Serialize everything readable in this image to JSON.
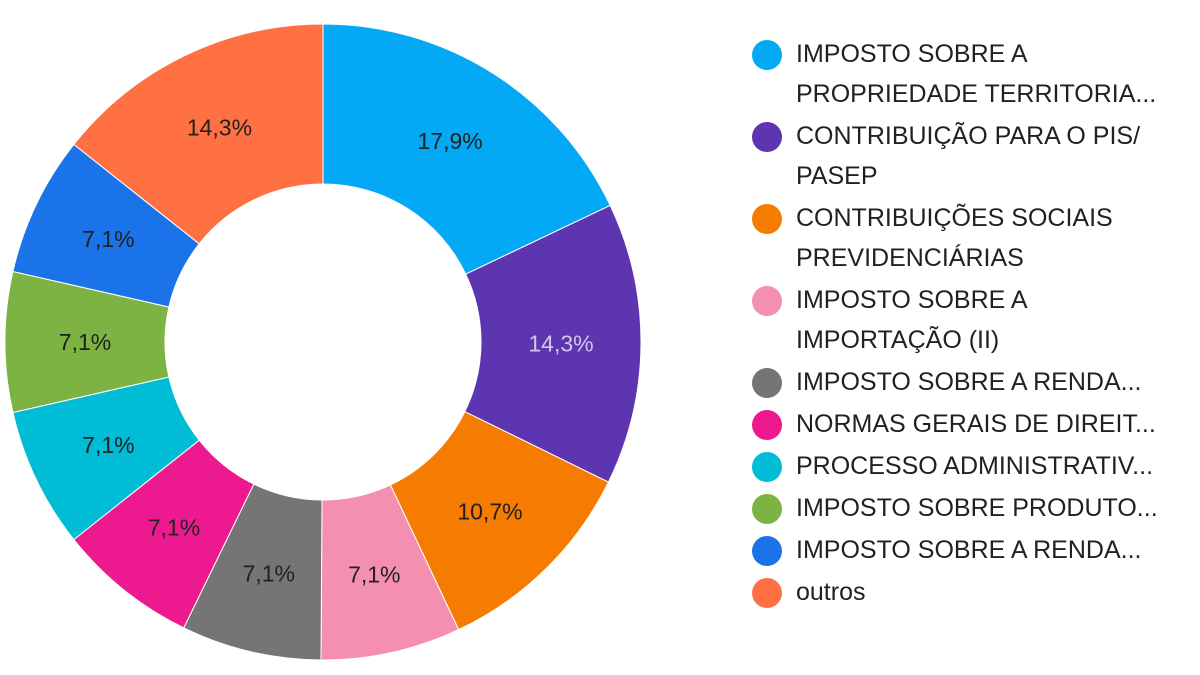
{
  "chart_data": {
    "type": "pie",
    "donut": true,
    "legend_position": "right",
    "title": "",
    "slices": [
      {
        "label": "IMPOSTO SOBRE A PROPRIEDADE TERRITORIA...",
        "value": 17.9,
        "display": "17,9%",
        "color": "#03a9f4",
        "label_color": "#212121"
      },
      {
        "label": "CONTRIBUIÇÃO PARA O PIS/ PASEP",
        "value": 14.3,
        "display": "14,3%",
        "color": "#5e35b1",
        "label_color": "#d0c8e4"
      },
      {
        "label": "CONTRIBUIÇÕES SOCIAIS PREVIDENCIÁRIAS",
        "value": 10.7,
        "display": "10,7%",
        "color": "#f57c00",
        "label_color": "#212121"
      },
      {
        "label": "IMPOSTO SOBRE A IMPORTAÇÃO (II)",
        "value": 7.1,
        "display": "7,1%",
        "color": "#f48fb1",
        "label_color": "#212121"
      },
      {
        "label": "IMPOSTO SOBRE A RENDA...",
        "value": 7.1,
        "display": "7,1%",
        "color": "#757575",
        "label_color": "#212121"
      },
      {
        "label": "NORMAS GERAIS DE DIREIT...",
        "value": 7.1,
        "display": "7,1%",
        "color": "#ec1a8e",
        "label_color": "#212121"
      },
      {
        "label": "PROCESSO ADMINISTRATIV...",
        "value": 7.1,
        "display": "7,1%",
        "color": "#00bcd4",
        "label_color": "#212121"
      },
      {
        "label": "IMPOSTO SOBRE PRODUTO...",
        "value": 7.1,
        "display": "7,1%",
        "color": "#7cb342",
        "label_color": "#212121"
      },
      {
        "label": "IMPOSTO SOBRE A RENDA...",
        "value": 7.1,
        "display": "7,1%",
        "color": "#1a73e8",
        "label_color": "#212121"
      },
      {
        "label": "outros",
        "value": 14.3,
        "display": "14,3%",
        "color": "#ff7043",
        "label_color": "#212121"
      }
    ]
  },
  "legend": {
    "items": [
      {
        "lines": [
          "IMPOSTO SOBRE A",
          "PROPRIEDADE TERRITORIA..."
        ],
        "color": "#03a9f4"
      },
      {
        "lines": [
          "CONTRIBUIÇÃO PARA O PIS/",
          "PASEP"
        ],
        "color": "#5e35b1"
      },
      {
        "lines": [
          "CONTRIBUIÇÕES SOCIAIS",
          "PREVIDENCIÁRIAS"
        ],
        "color": "#f57c00"
      },
      {
        "lines": [
          "IMPOSTO SOBRE A",
          "IMPORTAÇÃO (II)"
        ],
        "color": "#f48fb1"
      },
      {
        "lines": [
          "IMPOSTO SOBRE A RENDA..."
        ],
        "color": "#757575"
      },
      {
        "lines": [
          "NORMAS GERAIS DE DIREIT..."
        ],
        "color": "#ec1a8e"
      },
      {
        "lines": [
          "PROCESSO ADMINISTRATIV..."
        ],
        "color": "#00bcd4"
      },
      {
        "lines": [
          "IMPOSTO SOBRE PRODUTO..."
        ],
        "color": "#7cb342"
      },
      {
        "lines": [
          "IMPOSTO SOBRE A RENDA..."
        ],
        "color": "#1a73e8"
      },
      {
        "lines": [
          "outros"
        ],
        "color": "#ff7043"
      }
    ]
  }
}
